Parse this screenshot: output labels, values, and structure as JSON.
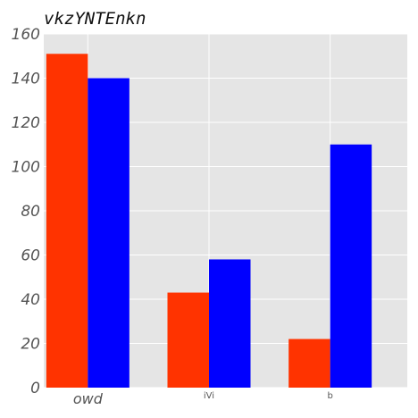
{
  "chart_data": {
    "type": "bar",
    "title": "vkzYNTEnkn",
    "xlabel": "",
    "ylabel": "",
    "categories": [
      "owd",
      "iVi",
      "b"
    ],
    "series": [
      {
        "values": [
          151,
          43,
          22
        ],
        "color": "#ff3300"
      },
      {
        "values": [
          140,
          58,
          110
        ],
        "color": "#0000ff"
      }
    ],
    "ylim": [
      0,
      160
    ],
    "yticks": [
      0,
      20,
      40,
      60,
      80,
      100,
      120,
      140,
      160
    ],
    "grid": true,
    "legend": "none",
    "background": "#e5e5e5",
    "grid_color": "#ffffff"
  }
}
